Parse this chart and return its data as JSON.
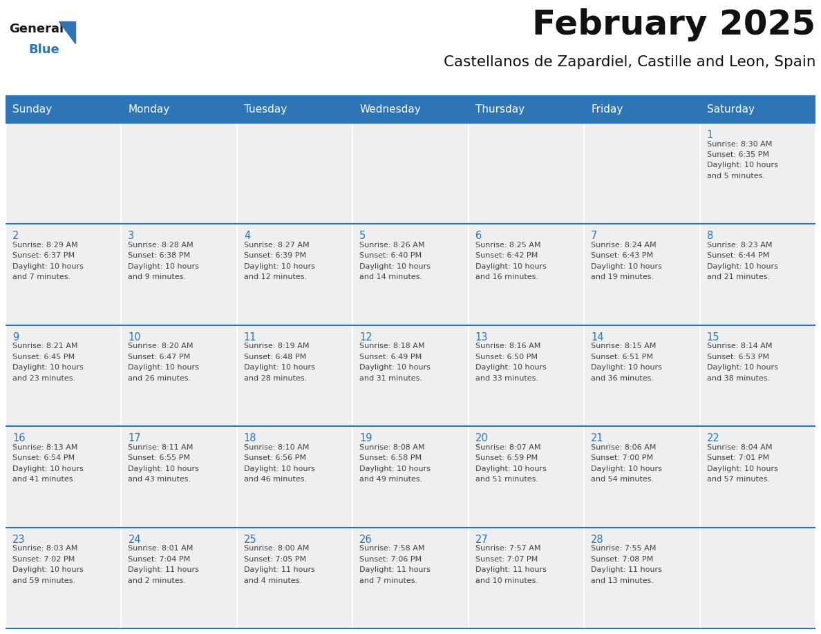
{
  "title": "February 2025",
  "subtitle": "Castellanos de Zapardiel, Castille and Leon, Spain",
  "header_bg_color": "#2E75B6",
  "header_text_color": "#FFFFFF",
  "cell_bg_color": "#EFEFEF",
  "separator_color": "#2E75B6",
  "day_number_color": "#2E75B6",
  "text_color": "#404040",
  "logo_general_color": "#1a1a1a",
  "logo_blue_color": "#2E75B6",
  "weekdays": [
    "Sunday",
    "Monday",
    "Tuesday",
    "Wednesday",
    "Thursday",
    "Friday",
    "Saturday"
  ],
  "days": [
    {
      "day": 1,
      "col": 6,
      "row": 0,
      "sunrise": "8:30 AM",
      "sunset": "6:35 PM",
      "daylight_line1": "Daylight: 10 hours",
      "daylight_line2": "and 5 minutes."
    },
    {
      "day": 2,
      "col": 0,
      "row": 1,
      "sunrise": "8:29 AM",
      "sunset": "6:37 PM",
      "daylight_line1": "Daylight: 10 hours",
      "daylight_line2": "and 7 minutes."
    },
    {
      "day": 3,
      "col": 1,
      "row": 1,
      "sunrise": "8:28 AM",
      "sunset": "6:38 PM",
      "daylight_line1": "Daylight: 10 hours",
      "daylight_line2": "and 9 minutes."
    },
    {
      "day": 4,
      "col": 2,
      "row": 1,
      "sunrise": "8:27 AM",
      "sunset": "6:39 PM",
      "daylight_line1": "Daylight: 10 hours",
      "daylight_line2": "and 12 minutes."
    },
    {
      "day": 5,
      "col": 3,
      "row": 1,
      "sunrise": "8:26 AM",
      "sunset": "6:40 PM",
      "daylight_line1": "Daylight: 10 hours",
      "daylight_line2": "and 14 minutes."
    },
    {
      "day": 6,
      "col": 4,
      "row": 1,
      "sunrise": "8:25 AM",
      "sunset": "6:42 PM",
      "daylight_line1": "Daylight: 10 hours",
      "daylight_line2": "and 16 minutes."
    },
    {
      "day": 7,
      "col": 5,
      "row": 1,
      "sunrise": "8:24 AM",
      "sunset": "6:43 PM",
      "daylight_line1": "Daylight: 10 hours",
      "daylight_line2": "and 19 minutes."
    },
    {
      "day": 8,
      "col": 6,
      "row": 1,
      "sunrise": "8:23 AM",
      "sunset": "6:44 PM",
      "daylight_line1": "Daylight: 10 hours",
      "daylight_line2": "and 21 minutes."
    },
    {
      "day": 9,
      "col": 0,
      "row": 2,
      "sunrise": "8:21 AM",
      "sunset": "6:45 PM",
      "daylight_line1": "Daylight: 10 hours",
      "daylight_line2": "and 23 minutes."
    },
    {
      "day": 10,
      "col": 1,
      "row": 2,
      "sunrise": "8:20 AM",
      "sunset": "6:47 PM",
      "daylight_line1": "Daylight: 10 hours",
      "daylight_line2": "and 26 minutes."
    },
    {
      "day": 11,
      "col": 2,
      "row": 2,
      "sunrise": "8:19 AM",
      "sunset": "6:48 PM",
      "daylight_line1": "Daylight: 10 hours",
      "daylight_line2": "and 28 minutes."
    },
    {
      "day": 12,
      "col": 3,
      "row": 2,
      "sunrise": "8:18 AM",
      "sunset": "6:49 PM",
      "daylight_line1": "Daylight: 10 hours",
      "daylight_line2": "and 31 minutes."
    },
    {
      "day": 13,
      "col": 4,
      "row": 2,
      "sunrise": "8:16 AM",
      "sunset": "6:50 PM",
      "daylight_line1": "Daylight: 10 hours",
      "daylight_line2": "and 33 minutes."
    },
    {
      "day": 14,
      "col": 5,
      "row": 2,
      "sunrise": "8:15 AM",
      "sunset": "6:51 PM",
      "daylight_line1": "Daylight: 10 hours",
      "daylight_line2": "and 36 minutes."
    },
    {
      "day": 15,
      "col": 6,
      "row": 2,
      "sunrise": "8:14 AM",
      "sunset": "6:53 PM",
      "daylight_line1": "Daylight: 10 hours",
      "daylight_line2": "and 38 minutes."
    },
    {
      "day": 16,
      "col": 0,
      "row": 3,
      "sunrise": "8:13 AM",
      "sunset": "6:54 PM",
      "daylight_line1": "Daylight: 10 hours",
      "daylight_line2": "and 41 minutes."
    },
    {
      "day": 17,
      "col": 1,
      "row": 3,
      "sunrise": "8:11 AM",
      "sunset": "6:55 PM",
      "daylight_line1": "Daylight: 10 hours",
      "daylight_line2": "and 43 minutes."
    },
    {
      "day": 18,
      "col": 2,
      "row": 3,
      "sunrise": "8:10 AM",
      "sunset": "6:56 PM",
      "daylight_line1": "Daylight: 10 hours",
      "daylight_line2": "and 46 minutes."
    },
    {
      "day": 19,
      "col": 3,
      "row": 3,
      "sunrise": "8:08 AM",
      "sunset": "6:58 PM",
      "daylight_line1": "Daylight: 10 hours",
      "daylight_line2": "and 49 minutes."
    },
    {
      "day": 20,
      "col": 4,
      "row": 3,
      "sunrise": "8:07 AM",
      "sunset": "6:59 PM",
      "daylight_line1": "Daylight: 10 hours",
      "daylight_line2": "and 51 minutes."
    },
    {
      "day": 21,
      "col": 5,
      "row": 3,
      "sunrise": "8:06 AM",
      "sunset": "7:00 PM",
      "daylight_line1": "Daylight: 10 hours",
      "daylight_line2": "and 54 minutes."
    },
    {
      "day": 22,
      "col": 6,
      "row": 3,
      "sunrise": "8:04 AM",
      "sunset": "7:01 PM",
      "daylight_line1": "Daylight: 10 hours",
      "daylight_line2": "and 57 minutes."
    },
    {
      "day": 23,
      "col": 0,
      "row": 4,
      "sunrise": "8:03 AM",
      "sunset": "7:02 PM",
      "daylight_line1": "Daylight: 10 hours",
      "daylight_line2": "and 59 minutes."
    },
    {
      "day": 24,
      "col": 1,
      "row": 4,
      "sunrise": "8:01 AM",
      "sunset": "7:04 PM",
      "daylight_line1": "Daylight: 11 hours",
      "daylight_line2": "and 2 minutes."
    },
    {
      "day": 25,
      "col": 2,
      "row": 4,
      "sunrise": "8:00 AM",
      "sunset": "7:05 PM",
      "daylight_line1": "Daylight: 11 hours",
      "daylight_line2": "and 4 minutes."
    },
    {
      "day": 26,
      "col": 3,
      "row": 4,
      "sunrise": "7:58 AM",
      "sunset": "7:06 PM",
      "daylight_line1": "Daylight: 11 hours",
      "daylight_line2": "and 7 minutes."
    },
    {
      "day": 27,
      "col": 4,
      "row": 4,
      "sunrise": "7:57 AM",
      "sunset": "7:07 PM",
      "daylight_line1": "Daylight: 11 hours",
      "daylight_line2": "and 10 minutes."
    },
    {
      "day": 28,
      "col": 5,
      "row": 4,
      "sunrise": "7:55 AM",
      "sunset": "7:08 PM",
      "daylight_line1": "Daylight: 11 hours",
      "daylight_line2": "and 13 minutes."
    }
  ],
  "fig_width": 11.88,
  "fig_height": 9.18,
  "dpi": 100
}
